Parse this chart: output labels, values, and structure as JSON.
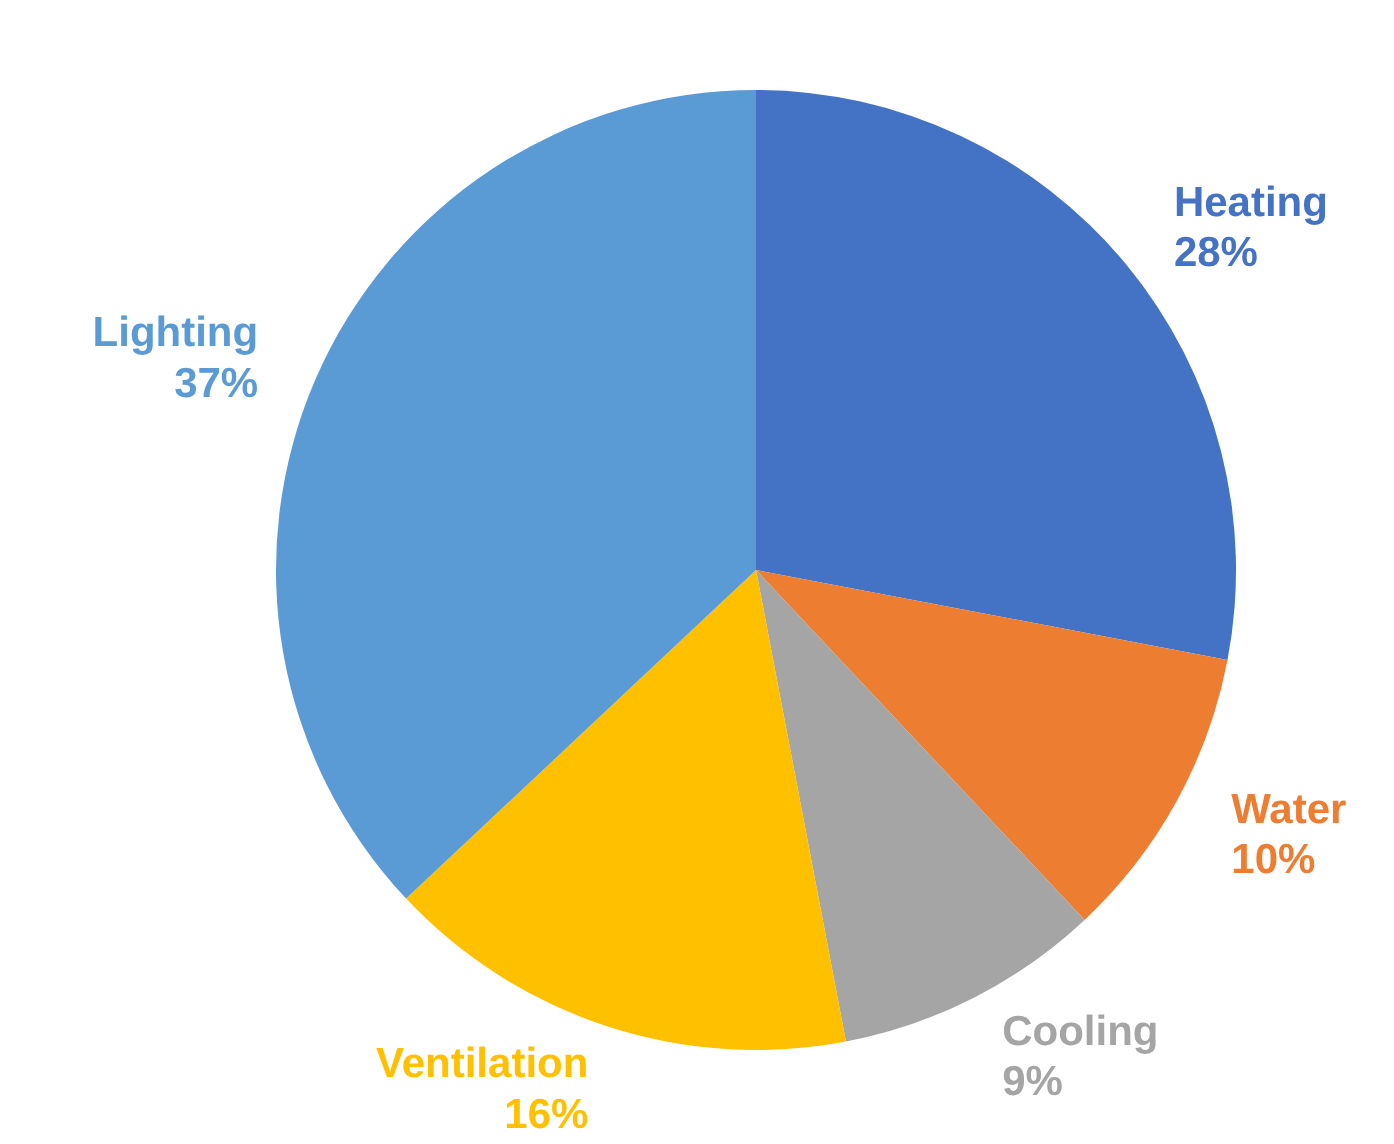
{
  "chart_data": {
    "type": "pie",
    "categories": [
      "Heating",
      "Water",
      "Cooling",
      "Ventilation",
      "Lighting"
    ],
    "values": [
      28,
      10,
      9,
      16,
      37
    ],
    "value_labels": [
      "28%",
      "10%",
      "9%",
      "16%",
      "37%"
    ],
    "colors": [
      "#4472c4",
      "#ed7d31",
      "#a5a5a5",
      "#ffc000",
      "#5b9bd5"
    ],
    "legend": false
  }
}
